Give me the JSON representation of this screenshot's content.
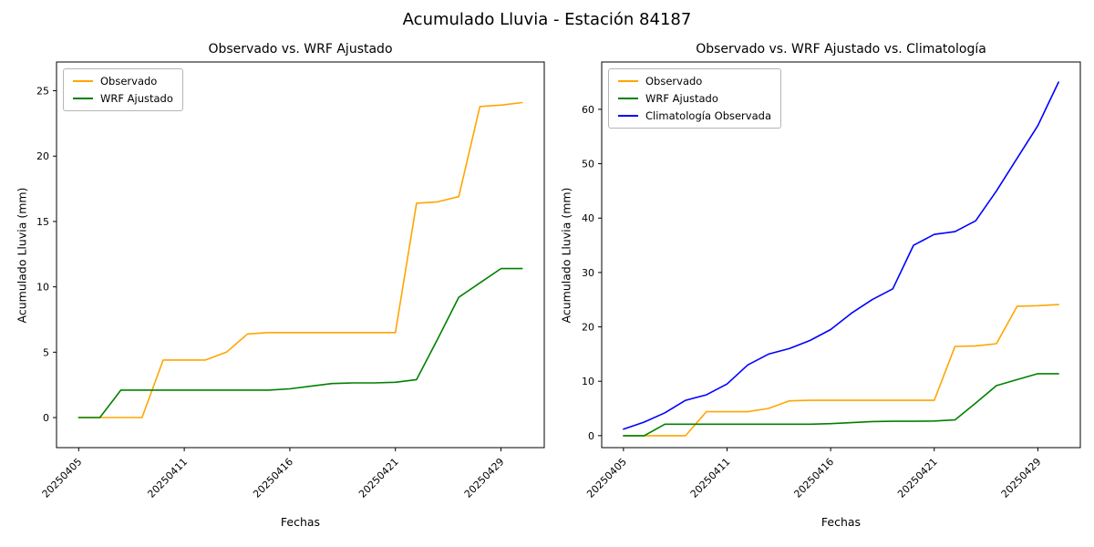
{
  "figure": {
    "title": "Acumulado Lluvia - Estación 84187"
  },
  "chart_data": [
    {
      "type": "line",
      "title": "Observado vs. WRF Ajustado",
      "xlabel": "Fechas",
      "ylabel": "Acumulado Lluvia (mm)",
      "xtick_labels": [
        "20250405",
        "20250411",
        "20250416",
        "20250421",
        "20250429"
      ],
      "xtick_positions": [
        0,
        5,
        10,
        15,
        20
      ],
      "yticks": [
        0,
        5,
        10,
        15,
        20,
        25
      ],
      "xlim": [
        -1.05,
        22.05
      ],
      "ylim": [
        -2.3,
        27.2
      ],
      "grid": false,
      "legend_position": "upper left",
      "series": [
        {
          "name": "Observado",
          "color": "#FFA500",
          "values": [
            0,
            0,
            0,
            0,
            4.4,
            4.4,
            4.4,
            5.0,
            6.4,
            6.5,
            6.5,
            6.5,
            6.5,
            6.5,
            6.5,
            6.5,
            16.4,
            16.5,
            16.9,
            23.8,
            23.9,
            24.1
          ]
        },
        {
          "name": "WRF Ajustado",
          "color": "#008000",
          "values": [
            0,
            0,
            2.1,
            2.1,
            2.1,
            2.1,
            2.1,
            2.1,
            2.1,
            2.1,
            2.2,
            2.4,
            2.6,
            2.65,
            2.65,
            2.7,
            2.9,
            6.0,
            9.2,
            10.3,
            11.4,
            11.4
          ]
        }
      ]
    },
    {
      "type": "line",
      "title": "Observado vs. WRF Ajustado vs. Climatología",
      "xlabel": "Fechas",
      "ylabel": "Acumulado Lluvia (mm)",
      "xtick_labels": [
        "20250405",
        "20250411",
        "20250416",
        "20250421",
        "20250429"
      ],
      "xtick_positions": [
        0,
        5,
        10,
        15,
        20
      ],
      "yticks": [
        0,
        10,
        20,
        30,
        40,
        50,
        60
      ],
      "xlim": [
        -1.05,
        22.05
      ],
      "ylim": [
        -2.2,
        68.7
      ],
      "grid": false,
      "legend_position": "upper left",
      "series": [
        {
          "name": "Observado",
          "color": "#FFA500",
          "values": [
            0,
            0,
            0,
            0,
            4.4,
            4.4,
            4.4,
            5.0,
            6.4,
            6.5,
            6.5,
            6.5,
            6.5,
            6.5,
            6.5,
            6.5,
            16.4,
            16.5,
            16.9,
            23.8,
            23.9,
            24.1
          ]
        },
        {
          "name": "WRF Ajustado",
          "color": "#008000",
          "values": [
            0,
            0,
            2.1,
            2.1,
            2.1,
            2.1,
            2.1,
            2.1,
            2.1,
            2.1,
            2.2,
            2.4,
            2.6,
            2.65,
            2.65,
            2.7,
            2.9,
            6.0,
            9.2,
            10.3,
            11.4,
            11.4
          ]
        },
        {
          "name": "Climatología Observada",
          "color": "#0000FF",
          "values": [
            1.2,
            2.5,
            4.2,
            6.5,
            7.5,
            9.5,
            13,
            15,
            16,
            17.5,
            19.5,
            22.5,
            25,
            27,
            35,
            37,
            37.5,
            39.5,
            45,
            51,
            57,
            65
          ]
        }
      ]
    }
  ]
}
